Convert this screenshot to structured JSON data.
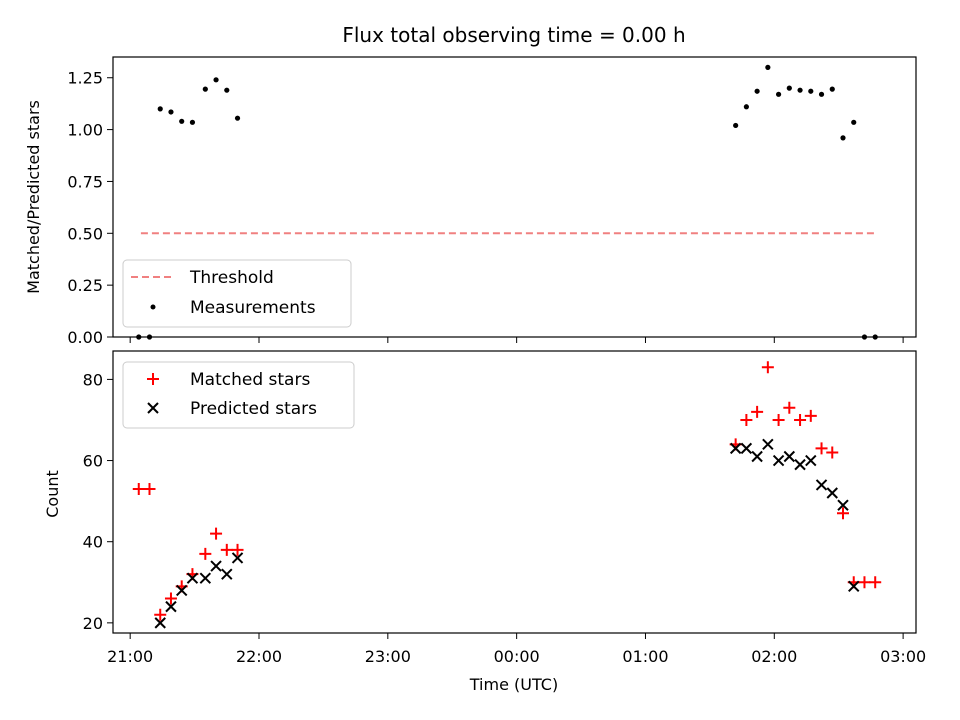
{
  "chart_data": [
    {
      "type": "scatter",
      "title": "Flux total observing time = 0.00 h",
      "ylabel": "Matched/Predicted stars",
      "xlim": [
        "21:00",
        "03:00"
      ],
      "x_ticks": [
        "21:00",
        "22:00",
        "23:00",
        "00:00",
        "01:00",
        "02:00",
        "03:00"
      ],
      "x_tick_labels_shown": false,
      "ylim": [
        0.0,
        1.35
      ],
      "y_ticks": [
        0.0,
        0.25,
        0.5,
        0.75,
        1.0,
        1.25
      ],
      "y_tick_labels": [
        "0.00",
        "0.25",
        "0.50",
        "0.75",
        "1.00",
        "1.25"
      ],
      "legend": {
        "placement": "lower-left",
        "entries": [
          "Threshold",
          "Measurements"
        ]
      },
      "threshold": {
        "name": "Threshold",
        "value": 0.5,
        "x_start": "21:05",
        "x_end": "02:47",
        "color": "#f08080",
        "style": "dashed"
      },
      "series": [
        {
          "name": "Measurements",
          "color": "#000000",
          "marker": "dot",
          "points": [
            {
              "x": "21:04",
              "y": 0.0
            },
            {
              "x": "21:09",
              "y": 0.0
            },
            {
              "x": "21:14",
              "y": 1.1
            },
            {
              "x": "21:19",
              "y": 1.085
            },
            {
              "x": "21:24",
              "y": 1.04
            },
            {
              "x": "21:29",
              "y": 1.035
            },
            {
              "x": "21:35",
              "y": 1.195
            },
            {
              "x": "21:40",
              "y": 1.24
            },
            {
              "x": "21:45",
              "y": 1.19
            },
            {
              "x": "21:50",
              "y": 1.055
            },
            {
              "x": "01:42",
              "y": 1.02
            },
            {
              "x": "01:47",
              "y": 1.11
            },
            {
              "x": "01:52",
              "y": 1.185
            },
            {
              "x": "01:57",
              "y": 1.3
            },
            {
              "x": "02:02",
              "y": 1.17
            },
            {
              "x": "02:07",
              "y": 1.2
            },
            {
              "x": "02:12",
              "y": 1.19
            },
            {
              "x": "02:17",
              "y": 1.185
            },
            {
              "x": "02:22",
              "y": 1.17
            },
            {
              "x": "02:27",
              "y": 1.195
            },
            {
              "x": "02:32",
              "y": 0.96
            },
            {
              "x": "02:37",
              "y": 1.035
            },
            {
              "x": "02:42",
              "y": 0.0
            },
            {
              "x": "02:47",
              "y": 0.0
            }
          ]
        }
      ]
    },
    {
      "type": "scatter",
      "xlabel": "Time (UTC)",
      "ylabel": "Count",
      "xlim": [
        "21:00",
        "03:00"
      ],
      "x_ticks": [
        "21:00",
        "22:00",
        "23:00",
        "00:00",
        "01:00",
        "02:00",
        "03:00"
      ],
      "x_tick_labels": [
        "21:00",
        "22:00",
        "23:00",
        "00:00",
        "01:00",
        "02:00",
        "03:00"
      ],
      "ylim": [
        17.5,
        87
      ],
      "y_ticks": [
        20,
        40,
        60,
        80
      ],
      "y_tick_labels": [
        "20",
        "40",
        "60",
        "80"
      ],
      "legend": {
        "placement": "upper-left",
        "entries": [
          "Matched stars",
          "Predicted stars"
        ]
      },
      "series": [
        {
          "name": "Matched stars",
          "color": "#ff0000",
          "marker": "plus",
          "points": [
            {
              "x": "21:04",
              "y": 53
            },
            {
              "x": "21:09",
              "y": 53
            },
            {
              "x": "21:14",
              "y": 22
            },
            {
              "x": "21:19",
              "y": 26
            },
            {
              "x": "21:24",
              "y": 29
            },
            {
              "x": "21:29",
              "y": 32
            },
            {
              "x": "21:35",
              "y": 37
            },
            {
              "x": "21:40",
              "y": 42
            },
            {
              "x": "21:45",
              "y": 38
            },
            {
              "x": "21:50",
              "y": 38
            },
            {
              "x": "01:42",
              "y": 64
            },
            {
              "x": "01:47",
              "y": 70
            },
            {
              "x": "01:52",
              "y": 72
            },
            {
              "x": "01:57",
              "y": 83
            },
            {
              "x": "02:02",
              "y": 70
            },
            {
              "x": "02:07",
              "y": 73
            },
            {
              "x": "02:12",
              "y": 70
            },
            {
              "x": "02:17",
              "y": 71
            },
            {
              "x": "02:22",
              "y": 63
            },
            {
              "x": "02:27",
              "y": 62
            },
            {
              "x": "02:32",
              "y": 47
            },
            {
              "x": "02:37",
              "y": 30
            },
            {
              "x": "02:42",
              "y": 30
            },
            {
              "x": "02:47",
              "y": 30
            }
          ]
        },
        {
          "name": "Predicted stars",
          "color": "#000000",
          "marker": "x",
          "points": [
            {
              "x": "21:14",
              "y": 20
            },
            {
              "x": "21:19",
              "y": 24
            },
            {
              "x": "21:24",
              "y": 28
            },
            {
              "x": "21:29",
              "y": 31
            },
            {
              "x": "21:35",
              "y": 31
            },
            {
              "x": "21:40",
              "y": 34
            },
            {
              "x": "21:45",
              "y": 32
            },
            {
              "x": "21:50",
              "y": 36
            },
            {
              "x": "01:42",
              "y": 63
            },
            {
              "x": "01:47",
              "y": 63
            },
            {
              "x": "01:52",
              "y": 61
            },
            {
              "x": "01:57",
              "y": 64
            },
            {
              "x": "02:02",
              "y": 60
            },
            {
              "x": "02:07",
              "y": 61
            },
            {
              "x": "02:12",
              "y": 59
            },
            {
              "x": "02:17",
              "y": 60
            },
            {
              "x": "02:22",
              "y": 54
            },
            {
              "x": "02:27",
              "y": 52
            },
            {
              "x": "02:32",
              "y": 49
            },
            {
              "x": "02:37",
              "y": 29
            }
          ]
        }
      ]
    }
  ]
}
